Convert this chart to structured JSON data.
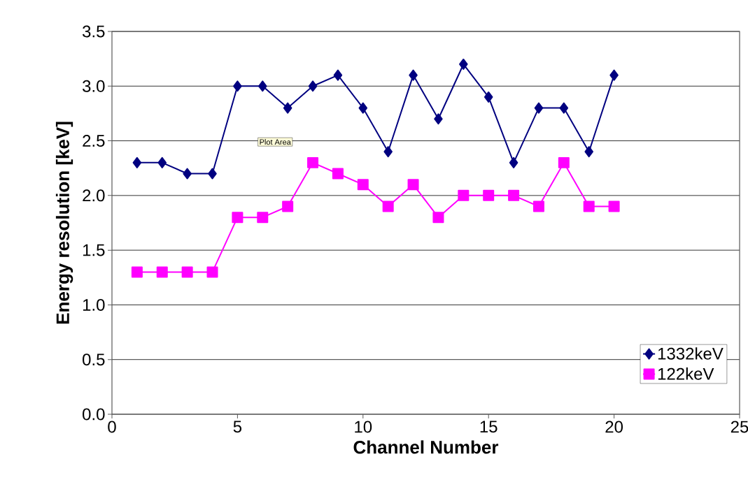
{
  "chart_data": {
    "type": "line",
    "xlabel": "Channel Number",
    "ylabel": "Energy resolution [keV]",
    "x": [
      1,
      2,
      3,
      4,
      5,
      6,
      7,
      8,
      9,
      10,
      11,
      12,
      13,
      14,
      15,
      16,
      17,
      18,
      19,
      20
    ],
    "series": [
      {
        "name": "1332keV",
        "color": "#000080",
        "marker": "diamond",
        "values": [
          2.3,
          2.3,
          2.2,
          2.2,
          3.0,
          3.0,
          2.8,
          3.0,
          3.1,
          2.8,
          2.4,
          3.1,
          2.7,
          3.2,
          2.9,
          2.3,
          2.8,
          2.8,
          2.4,
          3.1
        ]
      },
      {
        "name": "122keV",
        "color": "#ff00ff",
        "marker": "square",
        "values": [
          1.3,
          1.3,
          1.3,
          1.3,
          1.8,
          1.8,
          1.9,
          2.3,
          2.2,
          2.1,
          1.9,
          2.1,
          1.8,
          2.0,
          2.0,
          2.0,
          1.9,
          2.3,
          1.9,
          1.9
        ]
      }
    ],
    "xlim": [
      0,
      25
    ],
    "xticks": [
      0,
      5,
      10,
      15,
      20,
      25
    ],
    "ylim": [
      0,
      3.5
    ],
    "yticks": [
      {
        "value": 0,
        "label": "0.0"
      },
      {
        "value": 0.5,
        "label": "0.5"
      },
      {
        "value": 1,
        "label": "1.0"
      },
      {
        "value": 1.5,
        "label": "1.5"
      },
      {
        "value": 2,
        "label": "2.0"
      },
      {
        "value": 2.5,
        "label": "2.5"
      },
      {
        "value": 3,
        "label": "3.0"
      },
      {
        "value": 3.5,
        "label": "3.5"
      }
    ],
    "grid": "y",
    "legend": "bottom right",
    "line_style": "solid",
    "annotations": [
      "Plot Area"
    ]
  }
}
